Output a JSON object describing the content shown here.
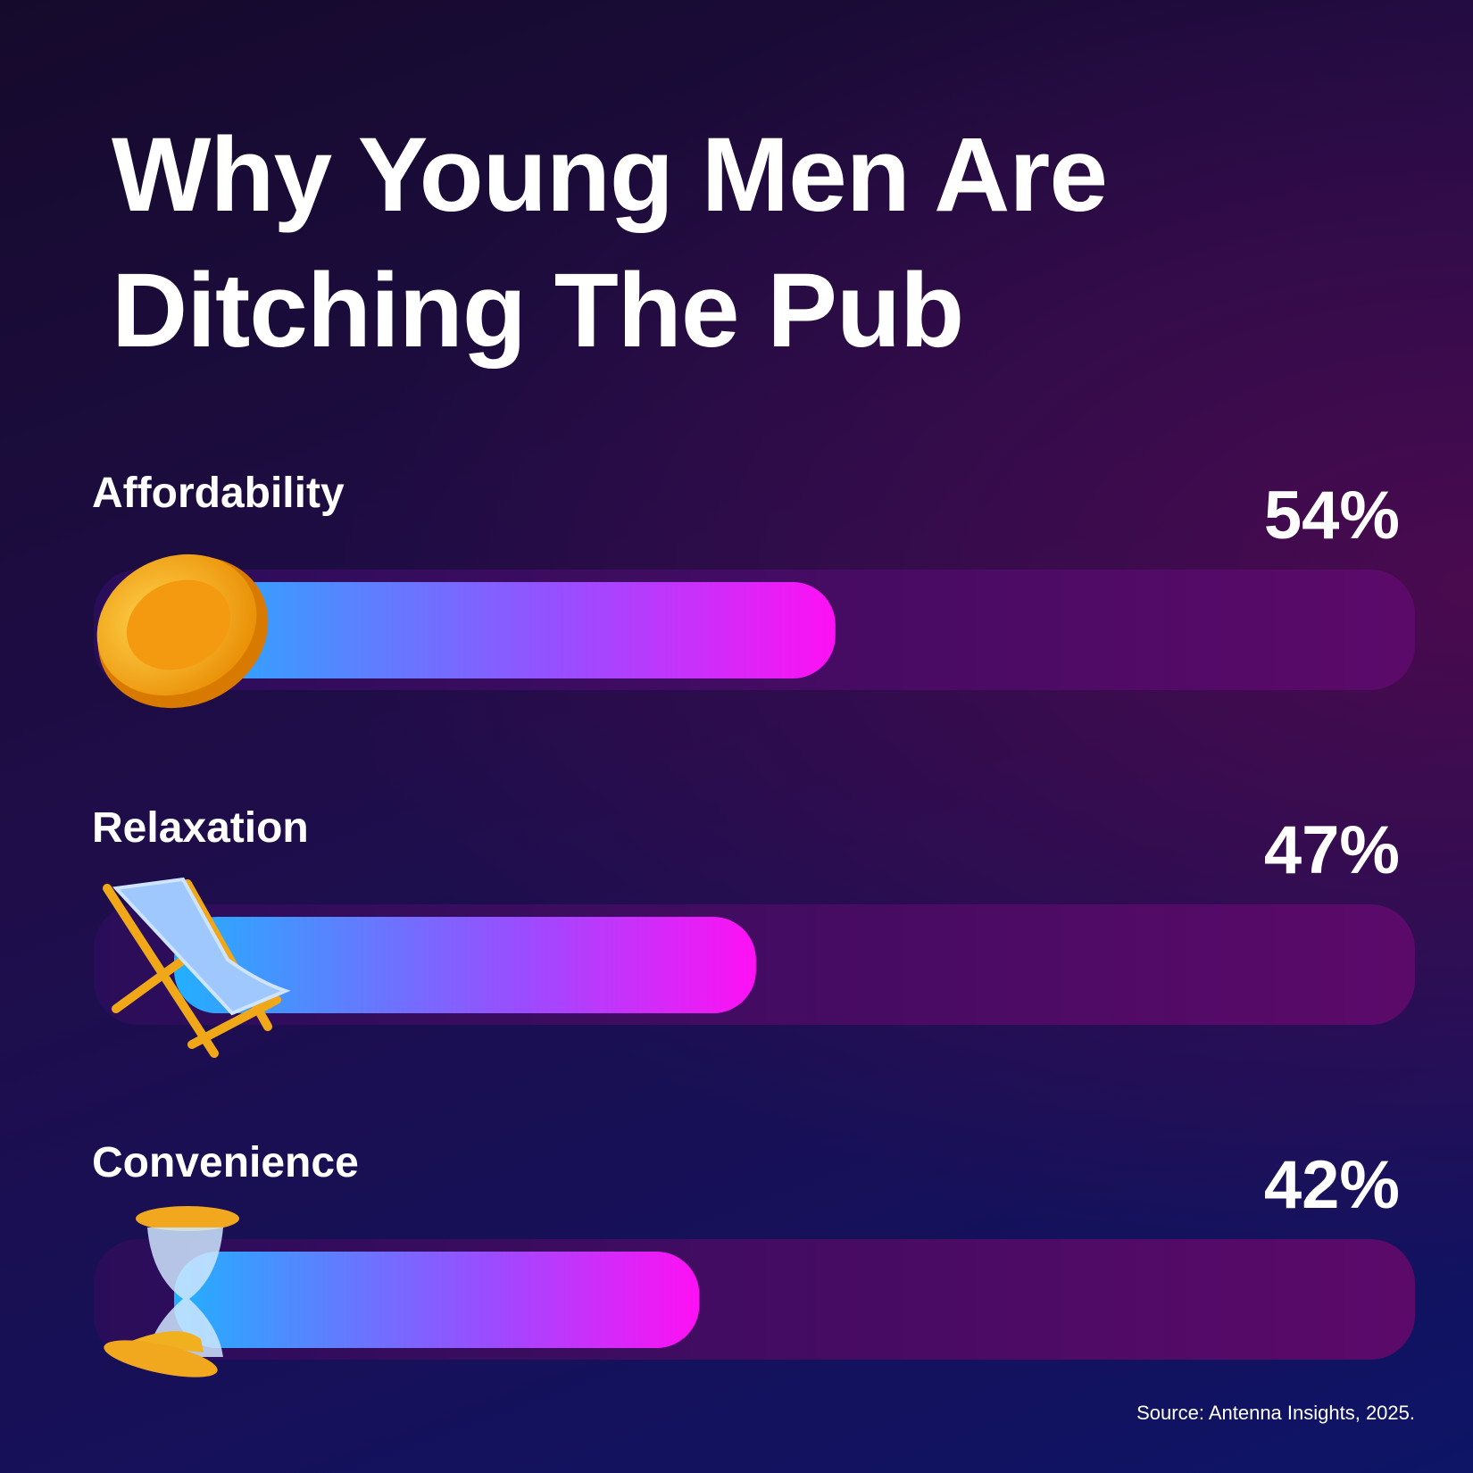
{
  "chart_data": {
    "type": "bar",
    "orientation": "horizontal",
    "title": "Why Young Men Are Ditching The Pub",
    "categories": [
      "Affordability",
      "Relaxation",
      "Convenience"
    ],
    "values": [
      54,
      47,
      42
    ],
    "value_labels": [
      "54%",
      "47%",
      "42%"
    ],
    "xlim": [
      0,
      100
    ],
    "colors": [
      "#22b0ff",
      "#ff10f4"
    ],
    "source": "Source: Antenna Insights, 2025."
  }
}
